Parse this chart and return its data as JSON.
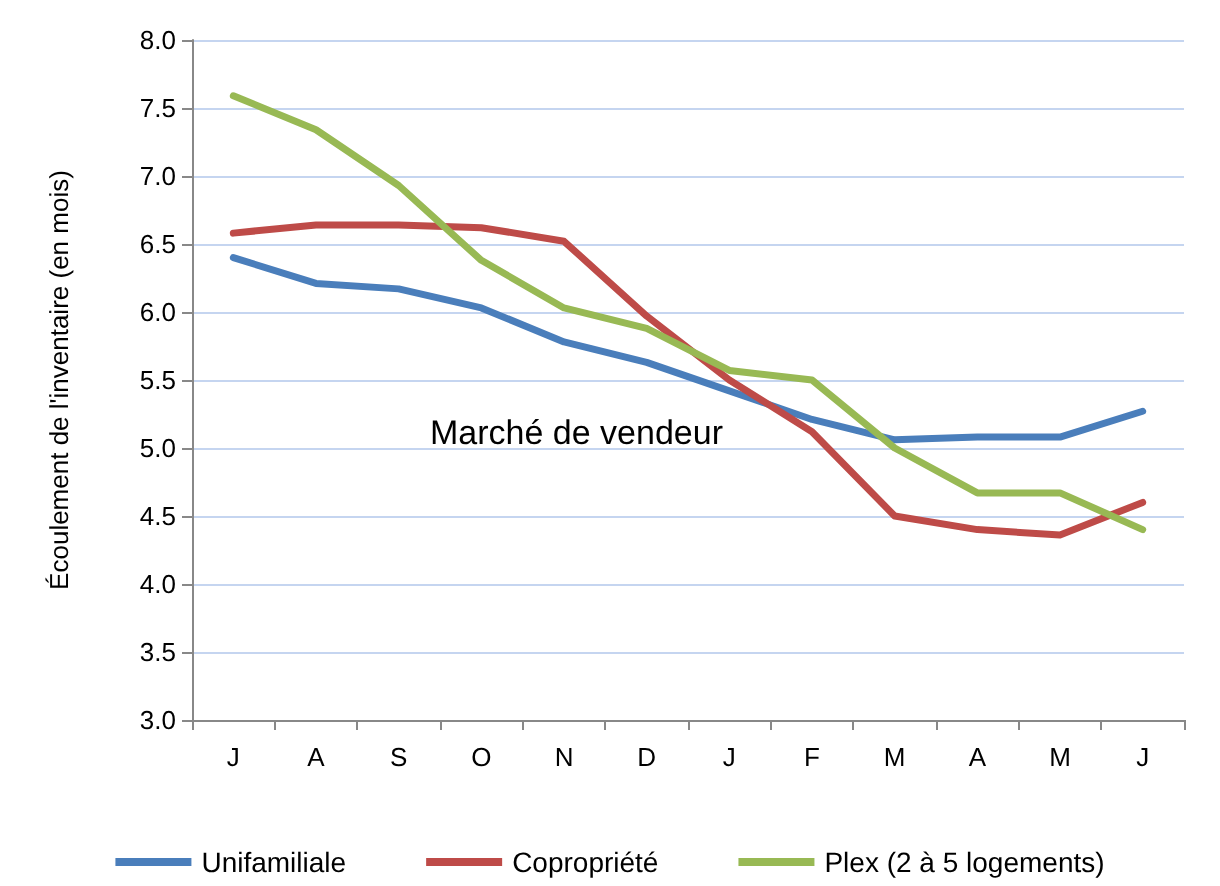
{
  "chart_data": {
    "type": "line",
    "ylabel": "Écoulement de l'inventaire (en mois)",
    "categories": [
      "J",
      "A",
      "S",
      "O",
      "N",
      "D",
      "J",
      "F",
      "M",
      "A",
      "M",
      "J"
    ],
    "series": [
      {
        "name": "Unifamiliale",
        "color": "#4a7ebb",
        "values": [
          6.4,
          6.21,
          6.17,
          6.03,
          5.78,
          5.63,
          5.42,
          5.21,
          5.06,
          5.08,
          5.08,
          5.27
        ]
      },
      {
        "name": "Copropriété",
        "color": "#be4b48",
        "values": [
          6.58,
          6.64,
          6.64,
          6.62,
          6.52,
          5.97,
          5.5,
          5.12,
          4.5,
          4.4,
          4.36,
          4.6
        ]
      },
      {
        "name": "Plex (2 à 5 logements)",
        "color": "#98b954",
        "values": [
          7.59,
          7.34,
          6.93,
          6.38,
          6.03,
          5.88,
          5.57,
          5.5,
          5.0,
          4.67,
          4.67,
          4.4
        ]
      }
    ],
    "ylim": [
      3.0,
      8.0
    ],
    "yticks": [
      {
        "value": 3,
        "label": "3.0"
      },
      {
        "value": 3.5,
        "label": "3.5"
      },
      {
        "value": 4,
        "label": "4.0"
      },
      {
        "value": 4.5,
        "label": "4.5"
      },
      {
        "value": 5,
        "label": "5.0"
      },
      {
        "value": 5.5,
        "label": "5.5"
      },
      {
        "value": 6,
        "label": "6.0"
      },
      {
        "value": 6.5,
        "label": "6.5"
      },
      {
        "value": 7,
        "label": "7.0"
      },
      {
        "value": 7.5,
        "label": "7.5"
      },
      {
        "value": 8,
        "label": "8.0"
      }
    ],
    "grid": "y",
    "legend": "bottom",
    "marker": "none",
    "line_style": "solid",
    "annotations": [
      "Marché de vendeur"
    ]
  }
}
